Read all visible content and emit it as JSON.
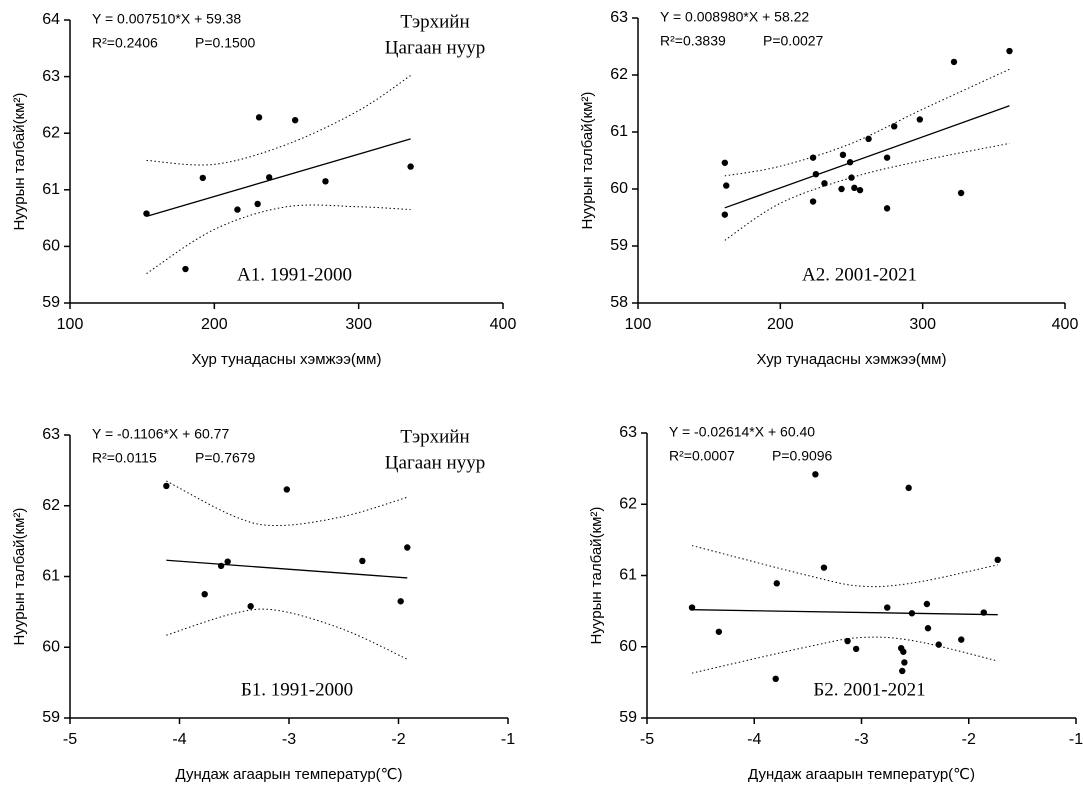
{
  "chart_data": [
    {
      "type": "scatter",
      "x_label": "Хур тунадасны хэмжээ(мм)",
      "y_label": "Нуурын талбай(км²)",
      "equation": "Y = 0.007510*X + 59.38",
      "r2": "R²=0.2406",
      "p": "P=0.1500",
      "panel_label": "А1.  1991-2000",
      "lake_name": [
        "Тэрхийн",
        "Цагаан нуур"
      ],
      "xlim": [
        100,
        400
      ],
      "xticks": [
        100,
        200,
        300,
        400
      ],
      "ylim": [
        59,
        64
      ],
      "yticks": [
        59,
        60,
        61,
        62,
        63,
        64
      ],
      "x": [
        153,
        180,
        192,
        216,
        230,
        231,
        238,
        256,
        277,
        336
      ],
      "values": [
        60.58,
        59.6,
        61.21,
        60.65,
        60.75,
        62.28,
        61.22,
        62.23,
        61.15,
        61.41
      ],
      "color": "#000000",
      "fit": {
        "x": [
          153,
          336
        ],
        "y": [
          60.53,
          61.9
        ]
      },
      "band": {
        "x": [
          153,
          200,
          250,
          300,
          336
        ],
        "upper": [
          61.52,
          61.45,
          61.8,
          62.4,
          63.02
        ],
        "lower": [
          59.52,
          60.3,
          60.7,
          60.7,
          60.65
        ]
      }
    },
    {
      "type": "scatter",
      "x_label": "Хур тунадасны хэмжээ(мм)",
      "y_label": "Нуурын талбай(км²)",
      "equation": "Y = 0.008980*X + 58.22",
      "r2": "R²=0.3839",
      "p": "P=0.0027",
      "panel_label": "А2. 2001-2021",
      "xlim": [
        100,
        400
      ],
      "xticks": [
        100,
        200,
        300,
        400
      ],
      "ylim": [
        58,
        63
      ],
      "yticks": [
        58,
        59,
        60,
        61,
        62,
        63
      ],
      "x": [
        161,
        162,
        161,
        223,
        225,
        223,
        231,
        243,
        244,
        249,
        250,
        252,
        256,
        262,
        275,
        275,
        280,
        298,
        322,
        327,
        361
      ],
      "values": [
        60.46,
        60.06,
        59.55,
        60.55,
        60.26,
        59.78,
        60.1,
        60.0,
        60.6,
        60.47,
        60.2,
        60.02,
        59.98,
        60.88,
        60.55,
        59.66,
        61.1,
        61.22,
        62.23,
        59.93,
        62.42
      ],
      "color": "#000000",
      "fit": {
        "x": [
          161,
          361
        ],
        "y": [
          59.67,
          61.46
        ]
      },
      "band": {
        "x": [
          161,
          200,
          250,
          300,
          361
        ],
        "upper": [
          60.23,
          60.4,
          60.8,
          61.4,
          62.1
        ],
        "lower": [
          59.1,
          59.75,
          60.2,
          60.5,
          60.8
        ]
      }
    },
    {
      "type": "scatter",
      "x_label": "Дундаж агаарын температур(℃)",
      "y_label": "Нуурын талбай(км²)",
      "equation": "Y = -0.1106*X + 60.77",
      "r2": "R²=0.0115",
      "p": "P=0.7679",
      "panel_label": "Б1. 1991-2000",
      "lake_name": [
        "Тэрхийн",
        "Цагаан нуур"
      ],
      "xlim": [
        -5,
        -1
      ],
      "xticks": [
        -5,
        -4,
        -3,
        -2,
        -1
      ],
      "ylim": [
        59,
        63
      ],
      "yticks": [
        59,
        60,
        61,
        62,
        63
      ],
      "x": [
        -4.12,
        -3.77,
        -3.62,
        -3.56,
        -3.35,
        -3.02,
        -2.33,
        -1.98,
        -1.92
      ],
      "values": [
        62.28,
        60.75,
        61.15,
        61.21,
        60.58,
        62.23,
        61.22,
        60.65,
        61.41
      ],
      "color": "#000000",
      "fit": {
        "x": [
          -4.12,
          -1.92
        ],
        "y": [
          61.23,
          60.98
        ]
      },
      "band": {
        "x": [
          -4.12,
          -3.5,
          -3.1,
          -2.5,
          -1.92
        ],
        "upper": [
          62.35,
          61.85,
          61.72,
          61.85,
          62.12
        ],
        "lower": [
          60.17,
          60.48,
          60.52,
          60.25,
          59.83
        ]
      }
    },
    {
      "type": "scatter",
      "x_label": "Дундаж агаарын температур(℃)",
      "y_label": "Нуурын талбай(км²)",
      "equation": "Y = -0.02614*X + 60.40",
      "r2": "R²=0.0007",
      "p": "P=0.9096",
      "panel_label": "Б2. 2001-2021",
      "xlim": [
        -5,
        -1
      ],
      "xticks": [
        -5,
        -4,
        -3,
        -2,
        -1
      ],
      "ylim": [
        59,
        63
      ],
      "yticks": [
        59,
        60,
        61,
        62,
        63
      ],
      "x": [
        -4.58,
        -4.33,
        -3.79,
        -3.8,
        -3.43,
        -3.35,
        -3.13,
        -3.05,
        -2.76,
        -2.63,
        -2.61,
        -2.6,
        -2.62,
        -2.56,
        -2.53,
        -2.39,
        -2.38,
        -2.28,
        -2.07,
        -1.86,
        -1.73
      ],
      "values": [
        60.55,
        60.21,
        60.89,
        59.55,
        62.42,
        61.11,
        60.08,
        59.97,
        60.55,
        59.98,
        59.93,
        59.78,
        59.66,
        62.23,
        60.47,
        60.6,
        60.26,
        60.03,
        60.1,
        60.48,
        61.22
      ],
      "color": "#000000",
      "fit": {
        "x": [
          -4.58,
          -1.73
        ],
        "y": [
          60.52,
          60.45
        ]
      },
      "band": {
        "x": [
          -4.58,
          -3.5,
          -3.0,
          -2.5,
          -1.73
        ],
        "upper": [
          61.42,
          61.0,
          60.85,
          60.9,
          61.15
        ],
        "lower": [
          59.63,
          60.0,
          60.13,
          60.08,
          59.8
        ]
      }
    }
  ]
}
